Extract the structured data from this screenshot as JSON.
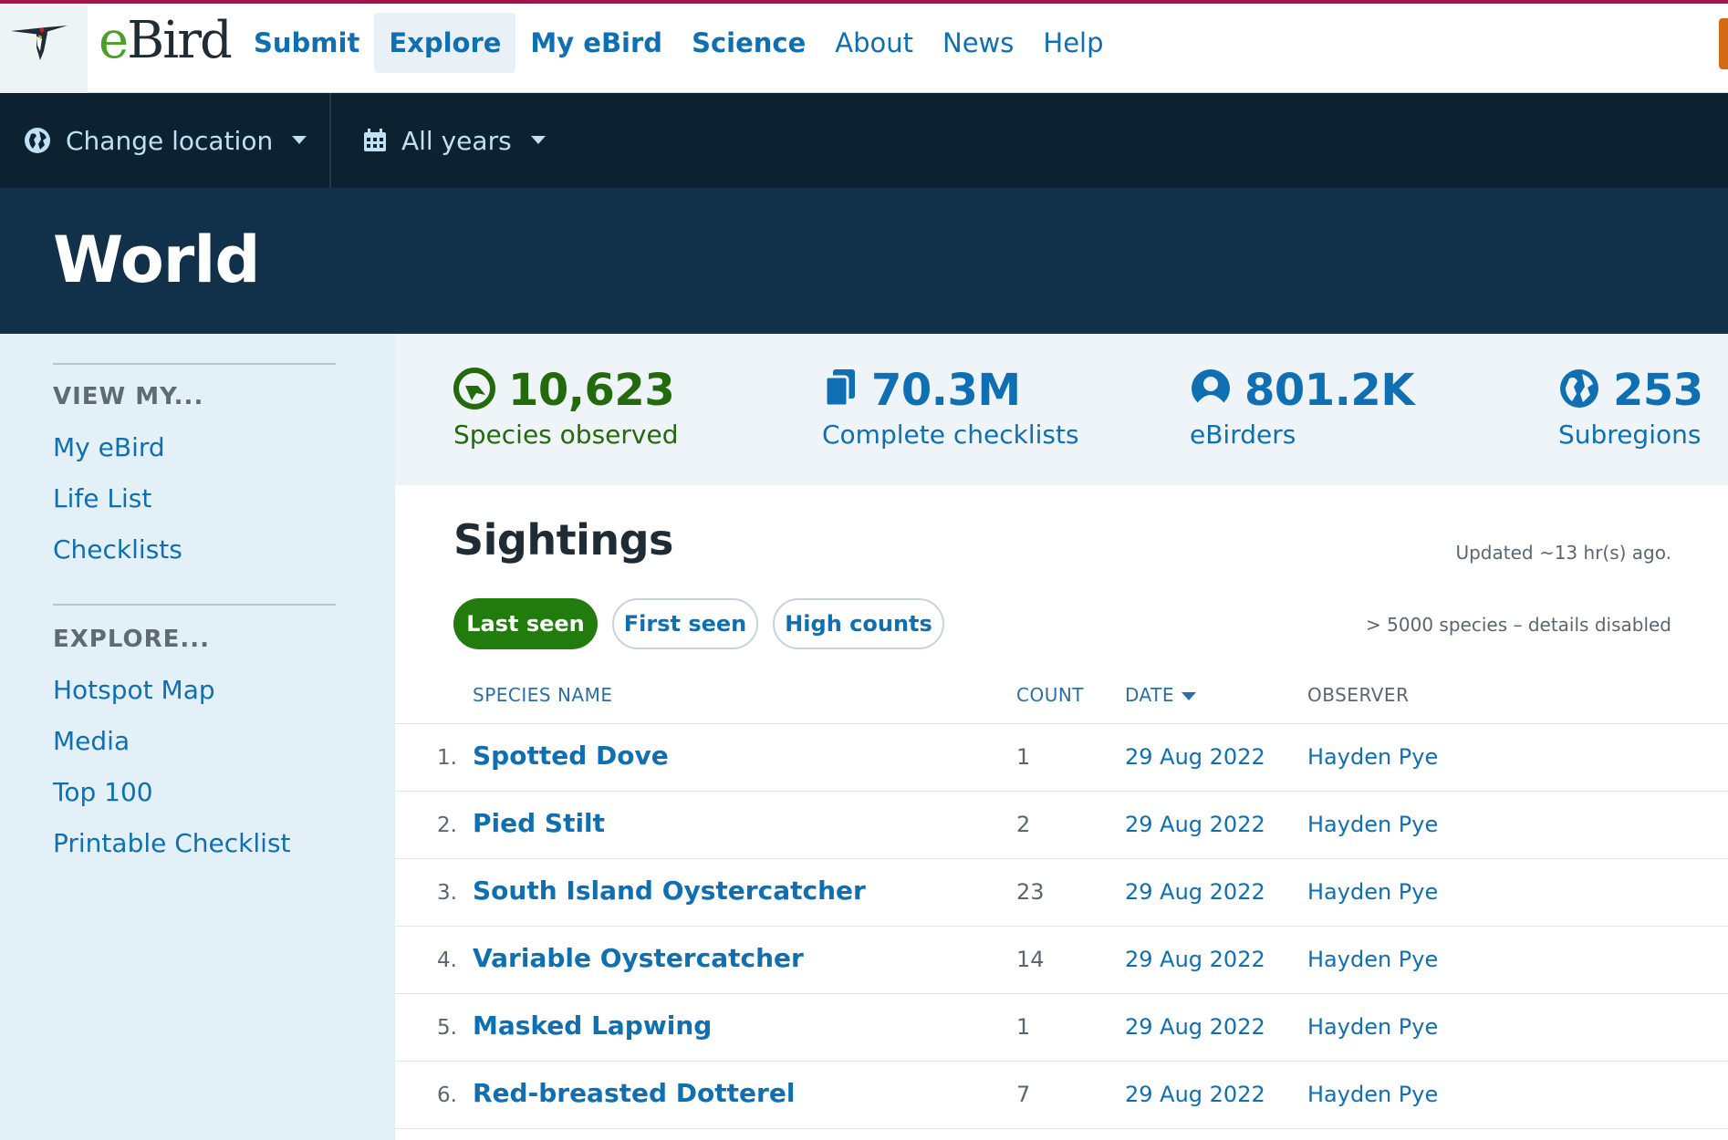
{
  "brand": {
    "name_e": "e",
    "name_rest": "Bird"
  },
  "nav": [
    {
      "label": "Submit",
      "bold": true,
      "active": false
    },
    {
      "label": "Explore",
      "bold": true,
      "active": true
    },
    {
      "label": "My eBird",
      "bold": true,
      "active": false
    },
    {
      "label": "Science",
      "bold": true,
      "active": false
    },
    {
      "label": "About",
      "bold": false,
      "active": false
    },
    {
      "label": "News",
      "bold": false,
      "active": false
    },
    {
      "label": "Help",
      "bold": false,
      "active": false
    }
  ],
  "location_bar": {
    "location": "Change location",
    "years": "All years"
  },
  "page_title": "World",
  "sidebar": {
    "view_heading": "VIEW MY...",
    "view_links": [
      "My eBird",
      "Life List",
      "Checklists"
    ],
    "explore_heading": "EXPLORE...",
    "explore_links": [
      "Hotspot Map",
      "Media",
      "Top 100",
      "Printable Checklist"
    ]
  },
  "stats": [
    {
      "value": "10,623",
      "label": "Species observed",
      "icon": "species-icon",
      "color": "#226a0b"
    },
    {
      "value": "70.3M",
      "label": "Complete checklists",
      "icon": "checklist-icon",
      "color": "#0f6fb3"
    },
    {
      "value": "801.2K",
      "label": "eBirders",
      "icon": "person-icon",
      "color": "#0f6fb3"
    },
    {
      "value": "253",
      "label": "Subregions",
      "icon": "globe-icon",
      "color": "#0f6fb3"
    }
  ],
  "sightings": {
    "title": "Sightings",
    "updated": "Updated ~13 hr(s) ago.",
    "note": "> 5000 species – details disabled",
    "tabs": [
      "Last seen",
      "First seen",
      "High counts"
    ],
    "columns": {
      "species": "SPECIES NAME",
      "count": "COUNT",
      "date": "DATE",
      "observer": "OBSERVER"
    },
    "rows": [
      {
        "idx": "1.",
        "species": "Spotted Dove",
        "count": "1",
        "date": "29 Aug 2022",
        "observer": "Hayden Pye"
      },
      {
        "idx": "2.",
        "species": "Pied Stilt",
        "count": "2",
        "date": "29 Aug 2022",
        "observer": "Hayden Pye"
      },
      {
        "idx": "3.",
        "species": "South Island Oystercatcher",
        "count": "23",
        "date": "29 Aug 2022",
        "observer": "Hayden Pye"
      },
      {
        "idx": "4.",
        "species": "Variable Oystercatcher",
        "count": "14",
        "date": "29 Aug 2022",
        "observer": "Hayden Pye"
      },
      {
        "idx": "5.",
        "species": "Masked Lapwing",
        "count": "1",
        "date": "29 Aug 2022",
        "observer": "Hayden Pye"
      },
      {
        "idx": "6.",
        "species": "Red-breasted Dotterel",
        "count": "7",
        "date": "29 Aug 2022",
        "observer": "Hayden Pye"
      }
    ]
  },
  "colors": {
    "accent_green": "#227b0d",
    "link_blue": "#0f6fb3",
    "header_dark": "#0c2231",
    "hero": "#11304a",
    "top_border": "#a7124b"
  }
}
